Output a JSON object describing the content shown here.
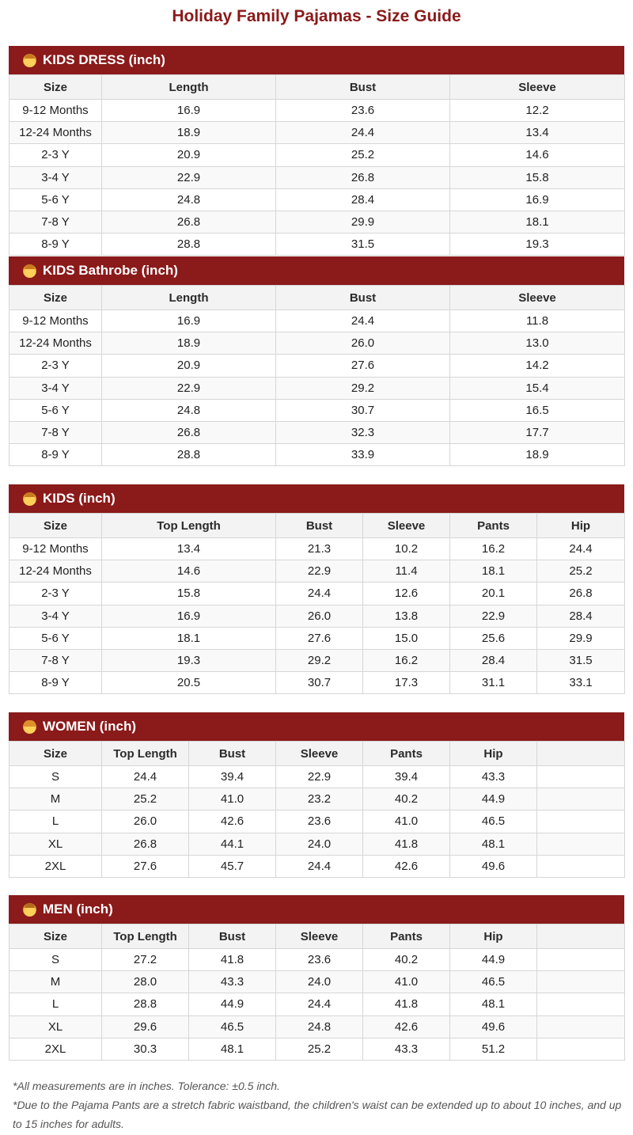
{
  "title": "Holiday Family Pajamas - Size Guide",
  "sections": [
    {
      "id": "kids-dress",
      "icon": "child-face-icon",
      "label": "KIDS DRESS (inch)",
      "headers": [
        "Size",
        "Length",
        "Bust",
        "Sleeve"
      ],
      "rows": [
        [
          "9-12 Months",
          "16.9",
          "23.6",
          "12.2"
        ],
        [
          "12-24 Months",
          "18.9",
          "24.4",
          "13.4"
        ],
        [
          "2-3 Y",
          "20.9",
          "25.2",
          "14.6"
        ],
        [
          "3-4 Y",
          "22.9",
          "26.8",
          "15.8"
        ],
        [
          "5-6 Y",
          "24.8",
          "28.4",
          "16.9"
        ],
        [
          "7-8 Y",
          "26.8",
          "29.9",
          "18.1"
        ],
        [
          "8-9 Y",
          "28.8",
          "31.5",
          "19.3"
        ]
      ]
    },
    {
      "id": "kids-bathrobe",
      "icon": "child-face-icon",
      "label": "KIDS Bathrobe (inch)",
      "headers": [
        "Size",
        "Length",
        "Bust",
        "Sleeve"
      ],
      "rows": [
        [
          "9-12 Months",
          "16.9",
          "24.4",
          "11.8"
        ],
        [
          "12-24 Months",
          "18.9",
          "26.0",
          "13.0"
        ],
        [
          "2-3 Y",
          "20.9",
          "27.6",
          "14.2"
        ],
        [
          "3-4 Y",
          "22.9",
          "29.2",
          "15.4"
        ],
        [
          "5-6 Y",
          "24.8",
          "30.7",
          "16.5"
        ],
        [
          "7-8 Y",
          "26.8",
          "32.3",
          "17.7"
        ],
        [
          "8-9 Y",
          "28.8",
          "33.9",
          "18.9"
        ]
      ]
    },
    {
      "id": "kids",
      "icon": "boy-face-icon",
      "label": "KIDS (inch)",
      "headers": [
        "Size",
        "Top Length",
        "Bust",
        "Sleeve",
        "Pants",
        "Hip"
      ],
      "rows": [
        [
          "9-12 Months",
          "13.4",
          "21.3",
          "10.2",
          "16.2",
          "24.4"
        ],
        [
          "12-24 Months",
          "14.6",
          "22.9",
          "11.4",
          "18.1",
          "25.2"
        ],
        [
          "2-3 Y",
          "15.8",
          "24.4",
          "12.6",
          "20.1",
          "26.8"
        ],
        [
          "3-4 Y",
          "16.9",
          "26.0",
          "13.8",
          "22.9",
          "28.4"
        ],
        [
          "5-6 Y",
          "18.1",
          "27.6",
          "15.0",
          "25.6",
          "29.9"
        ],
        [
          "7-8 Y",
          "19.3",
          "29.2",
          "16.2",
          "28.4",
          "31.5"
        ],
        [
          "8-9 Y",
          "20.5",
          "30.7",
          "17.3",
          "31.1",
          "33.1"
        ]
      ]
    },
    {
      "id": "women",
      "icon": "woman-face-icon",
      "label": "WOMEN (inch)",
      "headers": [
        "Size",
        "Top Length",
        "Bust",
        "Sleeve",
        "Pants",
        "Hip",
        ""
      ],
      "rows": [
        [
          "S",
          "24.4",
          "39.4",
          "22.9",
          "39.4",
          "43.3",
          ""
        ],
        [
          "M",
          "25.2",
          "41.0",
          "23.2",
          "40.2",
          "44.9",
          ""
        ],
        [
          "L",
          "26.0",
          "42.6",
          "23.6",
          "41.0",
          "46.5",
          ""
        ],
        [
          "XL",
          "26.8",
          "44.1",
          "24.0",
          "41.8",
          "48.1",
          ""
        ],
        [
          "2XL",
          "27.6",
          "45.7",
          "24.4",
          "42.6",
          "49.6",
          ""
        ]
      ]
    },
    {
      "id": "men",
      "icon": "man-face-icon",
      "label": "MEN (inch)",
      "headers": [
        "Size",
        "Top Length",
        "Bust",
        "Sleeve",
        "Pants",
        "Hip",
        ""
      ],
      "rows": [
        [
          "S",
          "27.2",
          "41.8",
          "23.6",
          "40.2",
          "44.9",
          ""
        ],
        [
          "M",
          "28.0",
          "43.3",
          "24.0",
          "41.0",
          "46.5",
          ""
        ],
        [
          "L",
          "28.8",
          "44.9",
          "24.4",
          "41.8",
          "48.1",
          ""
        ],
        [
          "XL",
          "29.6",
          "46.5",
          "24.8",
          "42.6",
          "49.6",
          ""
        ],
        [
          "2XL",
          "30.3",
          "48.1",
          "25.2",
          "43.3",
          "51.2",
          ""
        ]
      ]
    }
  ],
  "notes": [
    "*All measurements are in inches. Tolerance: ±0.5 inch.",
    "*Due to the Pajama Pants are a stretch fabric waistband, the children's waist can be extended up to about 10 inches, and up to 15 inches for adults."
  ],
  "colors": {
    "accent": "#8b1a1a",
    "header_bg": "#f3f3f3",
    "border": "#d6d6d6"
  }
}
